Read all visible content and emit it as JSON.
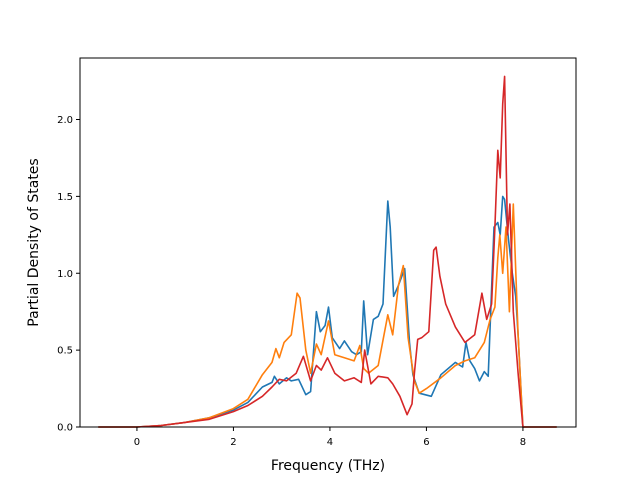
{
  "chart_data": {
    "type": "line",
    "xlabel": "Frequency (THz)",
    "ylabel": "Partial Density of States",
    "xlim": [
      -1.18,
      9.1
    ],
    "ylim": [
      0.0,
      2.4
    ],
    "xticks": [
      0,
      2,
      4,
      6,
      8
    ],
    "xtick_labels": [
      "0",
      "2",
      "4",
      "6",
      "8"
    ],
    "yticks": [
      0.0,
      0.5,
      1.0,
      1.5,
      2.0
    ],
    "ytick_labels": [
      "0.0",
      "0.5",
      "1.0",
      "1.5",
      "2.0"
    ],
    "grid": false,
    "legend": false,
    "series": [
      {
        "color": "#1f77b4",
        "x": [
          -0.8,
          0,
          0.5,
          1.0,
          1.5,
          2.0,
          2.3,
          2.6,
          2.8,
          2.85,
          2.95,
          3.1,
          3.2,
          3.35,
          3.5,
          3.6,
          3.72,
          3.8,
          3.9,
          3.97,
          4.05,
          4.2,
          4.3,
          4.45,
          4.55,
          4.65,
          4.7,
          4.78,
          4.9,
          5.0,
          5.1,
          5.2,
          5.25,
          5.32,
          5.42,
          5.55,
          5.65,
          5.72,
          5.85,
          6.1,
          6.3,
          6.6,
          6.75,
          6.82,
          6.9,
          7.0,
          7.1,
          7.2,
          7.28,
          7.4,
          7.48,
          7.53,
          7.58,
          7.62,
          7.7,
          7.78,
          7.85,
          7.9,
          8.0,
          8.5,
          8.7
        ],
        "y": [
          0.0,
          0.0,
          0.01,
          0.03,
          0.06,
          0.11,
          0.16,
          0.26,
          0.29,
          0.33,
          0.28,
          0.32,
          0.3,
          0.31,
          0.21,
          0.23,
          0.75,
          0.62,
          0.66,
          0.78,
          0.58,
          0.51,
          0.56,
          0.49,
          0.47,
          0.49,
          0.82,
          0.47,
          0.7,
          0.72,
          0.8,
          1.47,
          1.3,
          0.85,
          0.92,
          1.03,
          0.55,
          0.34,
          0.22,
          0.2,
          0.34,
          0.42,
          0.39,
          0.55,
          0.43,
          0.38,
          0.3,
          0.36,
          0.33,
          1.3,
          1.33,
          1.25,
          1.5,
          1.48,
          1.22,
          1.0,
          0.85,
          0.6,
          0.0,
          0.0,
          0.0
        ]
      },
      {
        "color": "#ff7f0e",
        "x": [
          -0.8,
          0,
          0.5,
          1.0,
          1.5,
          2.0,
          2.3,
          2.6,
          2.8,
          2.88,
          2.95,
          3.05,
          3.2,
          3.32,
          3.38,
          3.5,
          3.6,
          3.72,
          3.82,
          3.97,
          4.1,
          4.3,
          4.5,
          4.62,
          4.7,
          4.8,
          5.0,
          5.2,
          5.3,
          5.42,
          5.52,
          5.62,
          5.75,
          5.85,
          6.0,
          6.3,
          6.6,
          6.8,
          7.0,
          7.2,
          7.32,
          7.42,
          7.48,
          7.52,
          7.58,
          7.65,
          7.72,
          7.8,
          7.9,
          8.0,
          8.5,
          8.7
        ],
        "y": [
          0.0,
          0.0,
          0.01,
          0.03,
          0.06,
          0.12,
          0.18,
          0.34,
          0.42,
          0.51,
          0.45,
          0.55,
          0.6,
          0.87,
          0.84,
          0.5,
          0.35,
          0.54,
          0.47,
          0.69,
          0.47,
          0.45,
          0.43,
          0.53,
          0.38,
          0.35,
          0.4,
          0.73,
          0.6,
          0.92,
          1.05,
          0.58,
          0.3,
          0.22,
          0.25,
          0.32,
          0.4,
          0.43,
          0.45,
          0.55,
          0.7,
          0.78,
          1.1,
          1.25,
          1.0,
          1.3,
          0.75,
          1.45,
          0.6,
          0.0,
          0.0,
          0.0
        ]
      },
      {
        "color": "#d62728",
        "x": [
          -0.8,
          0,
          0.5,
          1.0,
          1.5,
          2.0,
          2.3,
          2.6,
          2.8,
          2.95,
          3.1,
          3.3,
          3.45,
          3.6,
          3.72,
          3.82,
          3.95,
          4.1,
          4.3,
          4.5,
          4.65,
          4.72,
          4.85,
          5.0,
          5.2,
          5.3,
          5.45,
          5.6,
          5.7,
          5.75,
          5.82,
          5.9,
          6.05,
          6.15,
          6.2,
          6.28,
          6.4,
          6.6,
          6.8,
          7.0,
          7.15,
          7.25,
          7.35,
          7.42,
          7.48,
          7.53,
          7.58,
          7.62,
          7.68,
          7.73,
          7.8,
          7.9,
          8.0,
          8.5,
          8.7
        ],
        "y": [
          0.0,
          0.0,
          0.01,
          0.03,
          0.05,
          0.1,
          0.14,
          0.2,
          0.26,
          0.31,
          0.3,
          0.35,
          0.46,
          0.3,
          0.4,
          0.37,
          0.45,
          0.35,
          0.3,
          0.32,
          0.29,
          0.5,
          0.28,
          0.33,
          0.32,
          0.28,
          0.2,
          0.08,
          0.15,
          0.35,
          0.57,
          0.58,
          0.62,
          1.15,
          1.17,
          0.98,
          0.8,
          0.65,
          0.55,
          0.6,
          0.87,
          0.7,
          0.8,
          1.3,
          1.8,
          1.62,
          2.1,
          2.28,
          1.25,
          1.45,
          0.75,
          0.35,
          0.0,
          0.0,
          0.0
        ]
      }
    ]
  }
}
